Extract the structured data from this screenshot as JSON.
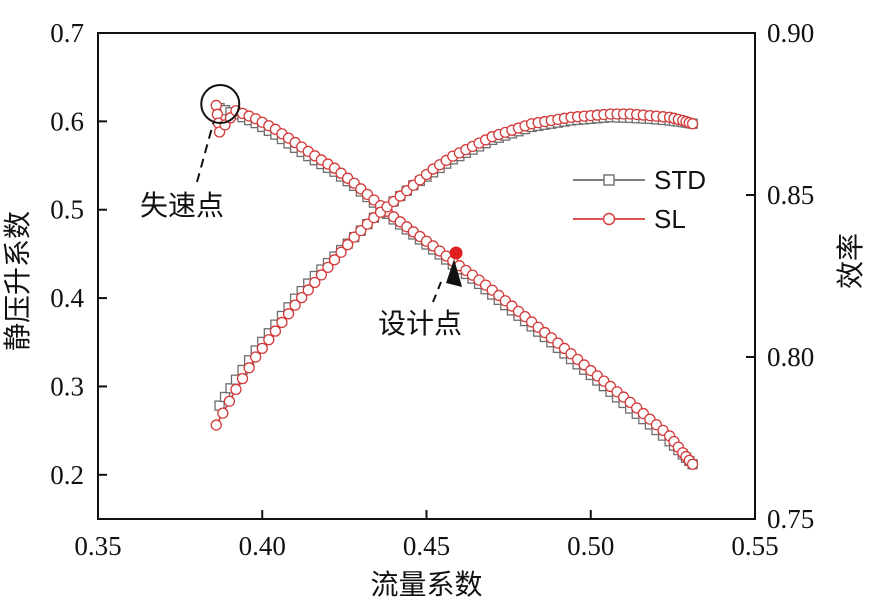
{
  "chart_data": {
    "type": "line",
    "xlabel": "流量系数",
    "ylabel_left": "静压升系数",
    "ylabel_right": "效率",
    "xlim": [
      0.35,
      0.55
    ],
    "ylim_left": [
      0.15,
      0.7
    ],
    "ylim_right": [
      0.75,
      0.9
    ],
    "x_ticks": [
      "0.35",
      "0.40",
      "0.45",
      "0.50",
      "0.55"
    ],
    "y_left_ticks": [
      "0.2",
      "0.3",
      "0.4",
      "0.5",
      "0.6",
      "0.7"
    ],
    "y_right_ticks": [
      "0.75",
      "0.80",
      "0.85",
      "0.90"
    ],
    "colors": {
      "STD": "#6e6e6e",
      "SL": "#d43a3a",
      "design_point": "#e02020"
    },
    "legend": {
      "position": "right-middle",
      "entries": [
        "STD",
        "SL"
      ]
    },
    "series": [
      {
        "name": "STD",
        "marker": "square",
        "pressure": {
          "x": [
            0.387,
            0.392,
            0.398,
            0.404,
            0.41,
            0.416,
            0.422,
            0.428,
            0.434,
            0.44,
            0.446,
            0.452,
            0.458,
            0.464,
            0.47,
            0.476,
            0.482,
            0.488,
            0.494,
            0.5,
            0.506,
            0.512,
            0.518,
            0.524,
            0.528,
            0.531
          ],
          "y": [
            0.615,
            0.608,
            0.598,
            0.585,
            0.57,
            0.556,
            0.543,
            0.527,
            0.508,
            0.489,
            0.472,
            0.455,
            0.438,
            0.422,
            0.404,
            0.386,
            0.368,
            0.35,
            0.331,
            0.313,
            0.294,
            0.275,
            0.257,
            0.238,
            0.223,
            0.212
          ]
        },
        "efficiency": {
          "x": [
            0.387,
            0.392,
            0.398,
            0.404,
            0.41,
            0.416,
            0.422,
            0.428,
            0.434,
            0.44,
            0.446,
            0.452,
            0.458,
            0.464,
            0.47,
            0.476,
            0.482,
            0.488,
            0.494,
            0.5,
            0.506,
            0.512,
            0.518,
            0.524,
            0.528,
            0.531
          ],
          "y": [
            0.785,
            0.793,
            0.802,
            0.81,
            0.818,
            0.825,
            0.831,
            0.837,
            0.843,
            0.848,
            0.853,
            0.857,
            0.861,
            0.864,
            0.867,
            0.869,
            0.871,
            0.872,
            0.873,
            0.8735,
            0.874,
            0.8738,
            0.8735,
            0.873,
            0.8725,
            0.872
          ]
        }
      },
      {
        "name": "SL",
        "marker": "circle",
        "pressure": {
          "x": [
            0.386,
            0.387,
            0.392,
            0.398,
            0.404,
            0.41,
            0.416,
            0.422,
            0.428,
            0.434,
            0.44,
            0.446,
            0.452,
            0.458,
            0.464,
            0.47,
            0.476,
            0.482,
            0.488,
            0.494,
            0.5,
            0.506,
            0.512,
            0.518,
            0.524,
            0.528,
            0.531
          ],
          "y": [
            0.618,
            0.588,
            0.612,
            0.603,
            0.591,
            0.576,
            0.561,
            0.547,
            0.53,
            0.511,
            0.492,
            0.475,
            0.459,
            0.442,
            0.426,
            0.409,
            0.391,
            0.373,
            0.355,
            0.337,
            0.318,
            0.3,
            0.282,
            0.263,
            0.244,
            0.225,
            0.212
          ]
        },
        "efficiency": {
          "x": [
            0.386,
            0.392,
            0.398,
            0.404,
            0.41,
            0.416,
            0.422,
            0.428,
            0.434,
            0.44,
            0.446,
            0.452,
            0.458,
            0.464,
            0.47,
            0.476,
            0.482,
            0.488,
            0.494,
            0.5,
            0.506,
            0.512,
            0.518,
            0.524,
            0.528,
            0.531
          ],
          "y": [
            0.779,
            0.79,
            0.8,
            0.808,
            0.816,
            0.823,
            0.83,
            0.837,
            0.843,
            0.848,
            0.853,
            0.858,
            0.862,
            0.865,
            0.868,
            0.87,
            0.872,
            0.873,
            0.874,
            0.8745,
            0.875,
            0.875,
            0.8745,
            0.874,
            0.873,
            0.872
          ]
        }
      }
    ],
    "annotations": [
      {
        "text": "失速点",
        "target": {
          "x": 0.386,
          "y": 0.614
        },
        "circled": true
      },
      {
        "text": "设计点",
        "target": {
          "x": 0.459,
          "y": 0.451
        },
        "filled_point": true
      }
    ]
  }
}
